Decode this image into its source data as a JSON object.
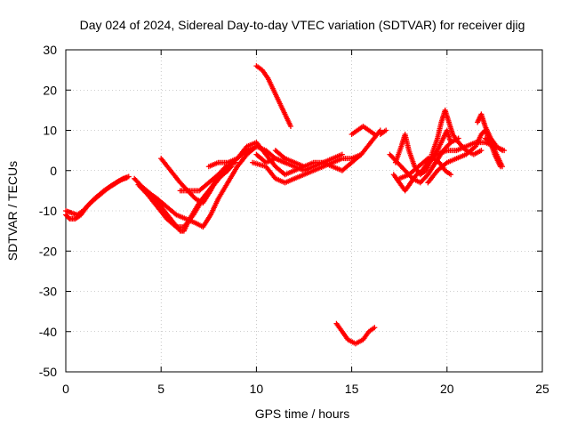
{
  "chart_data": {
    "type": "scatter",
    "title": "Day 024 of 2024, Sidereal Day-to-day VTEC variation (SDTVAR) for receiver djig",
    "xlabel": "GPS time / hours",
    "ylabel": "SDTVAR / TECUs",
    "xlim": [
      0,
      25
    ],
    "ylim": [
      -50,
      30
    ],
    "xticks": [
      0,
      5,
      10,
      15,
      20,
      25
    ],
    "yticks": [
      -50,
      -40,
      -30,
      -20,
      -10,
      0,
      10,
      20,
      30
    ],
    "grid": true,
    "legend": "none",
    "marker": "+",
    "color": "#ff0000",
    "series": [
      {
        "points": [
          [
            0.0,
            -11
          ],
          [
            0.2,
            -12
          ],
          [
            0.5,
            -12
          ],
          [
            0.8,
            -11
          ],
          [
            1.1,
            -9
          ],
          [
            1.5,
            -7
          ],
          [
            2.0,
            -5
          ],
          [
            2.5,
            -3.5
          ],
          [
            3.0,
            -2
          ],
          [
            3.3,
            -1.5
          ]
        ]
      },
      {
        "points": [
          [
            0.0,
            -10
          ],
          [
            0.3,
            -10.5
          ],
          [
            0.6,
            -11
          ],
          [
            0.9,
            -10
          ],
          [
            1.3,
            -8
          ],
          [
            1.8,
            -6
          ],
          [
            2.3,
            -4
          ],
          [
            2.8,
            -2.5
          ],
          [
            3.2,
            -1.8
          ]
        ]
      },
      {
        "points": [
          [
            3.6,
            -2
          ],
          [
            4.0,
            -4
          ],
          [
            4.5,
            -6
          ],
          [
            5.0,
            -9
          ],
          [
            5.5,
            -12
          ],
          [
            6.0,
            -15
          ],
          [
            6.2,
            -15
          ],
          [
            6.5,
            -12
          ],
          [
            7.0,
            -8
          ],
          [
            7.5,
            -5
          ],
          [
            8.0,
            -2
          ],
          [
            8.5,
            0
          ]
        ]
      },
      {
        "points": [
          [
            3.8,
            -3.5
          ],
          [
            4.3,
            -6
          ],
          [
            4.8,
            -9
          ],
          [
            5.3,
            -12
          ],
          [
            5.8,
            -14
          ],
          [
            6.2,
            -14
          ],
          [
            6.7,
            -11
          ],
          [
            7.2,
            -7
          ],
          [
            7.7,
            -4
          ],
          [
            8.2,
            -1
          ],
          [
            8.7,
            1
          ]
        ]
      },
      {
        "points": [
          [
            4.2,
            -5
          ],
          [
            4.8,
            -7
          ],
          [
            5.3,
            -9
          ],
          [
            5.8,
            -11
          ],
          [
            6.3,
            -12
          ],
          [
            6.8,
            -13
          ],
          [
            7.2,
            -14
          ],
          [
            7.6,
            -11
          ],
          [
            8.0,
            -7
          ],
          [
            8.5,
            -3
          ],
          [
            9.0,
            1
          ],
          [
            9.5,
            4
          ],
          [
            10.0,
            6
          ]
        ]
      },
      {
        "points": [
          [
            5.0,
            3
          ],
          [
            5.5,
            0
          ],
          [
            6.0,
            -3
          ],
          [
            6.4,
            -5
          ],
          [
            6.8,
            -7
          ],
          [
            7.2,
            -8
          ],
          [
            7.6,
            -5
          ],
          [
            8.0,
            -1
          ],
          [
            8.4,
            1
          ],
          [
            8.9,
            2
          ]
        ]
      },
      {
        "points": [
          [
            6.0,
            -5
          ],
          [
            6.5,
            -5
          ],
          [
            7.0,
            -5
          ],
          [
            7.5,
            -3
          ],
          [
            8.0,
            -1
          ],
          [
            8.5,
            1
          ],
          [
            9.0,
            3
          ],
          [
            9.5,
            5
          ],
          [
            10.0,
            6
          ],
          [
            10.5,
            5
          ],
          [
            11.0,
            3
          ],
          [
            11.5,
            2
          ]
        ]
      },
      {
        "points": [
          [
            7.5,
            1
          ],
          [
            8.0,
            2
          ],
          [
            8.5,
            2
          ],
          [
            9.0,
            3
          ],
          [
            9.5,
            6
          ],
          [
            10.0,
            7
          ],
          [
            10.5,
            4
          ],
          [
            11.0,
            1
          ],
          [
            11.5,
            -1
          ],
          [
            12.0,
            0
          ],
          [
            12.5,
            1
          ]
        ]
      },
      {
        "points": [
          [
            10.0,
            26
          ],
          [
            10.3,
            25
          ],
          [
            10.6,
            23
          ],
          [
            10.9,
            20
          ],
          [
            11.2,
            17
          ],
          [
            11.5,
            14
          ],
          [
            11.8,
            11
          ]
        ]
      },
      {
        "points": [
          [
            9.8,
            2
          ],
          [
            10.5,
            1
          ],
          [
            11.0,
            -2
          ],
          [
            11.5,
            -3
          ],
          [
            12.0,
            -2
          ],
          [
            12.5,
            -1
          ],
          [
            13.0,
            0
          ],
          [
            13.5,
            1
          ],
          [
            14.0,
            2
          ],
          [
            14.5,
            3
          ],
          [
            15.0,
            3
          ],
          [
            15.5,
            4
          ]
        ]
      },
      {
        "points": [
          [
            10.0,
            4
          ],
          [
            10.5,
            2
          ],
          [
            11.0,
            3
          ],
          [
            11.5,
            2
          ],
          [
            12.0,
            1
          ],
          [
            12.5,
            0
          ],
          [
            13.0,
            1
          ],
          [
            13.5,
            2
          ],
          [
            14.0,
            3
          ],
          [
            14.5,
            4
          ]
        ]
      },
      {
        "points": [
          [
            11.0,
            5
          ],
          [
            11.5,
            3
          ],
          [
            12.0,
            2
          ],
          [
            12.5,
            1
          ],
          [
            13.0,
            2
          ],
          [
            13.5,
            2
          ],
          [
            14.0,
            1
          ],
          [
            14.5,
            0
          ],
          [
            15.0,
            2
          ],
          [
            15.5,
            4
          ],
          [
            16.0,
            7
          ],
          [
            16.5,
            10
          ]
        ]
      },
      {
        "points": [
          [
            14.2,
            -38
          ],
          [
            14.5,
            -40
          ],
          [
            14.8,
            -42
          ],
          [
            15.2,
            -43
          ],
          [
            15.6,
            -42
          ],
          [
            15.9,
            -40
          ],
          [
            16.2,
            -39
          ]
        ]
      },
      {
        "points": [
          [
            15.0,
            9
          ],
          [
            15.3,
            10
          ],
          [
            15.6,
            11
          ],
          [
            15.9,
            10
          ],
          [
            16.2,
            9
          ]
        ]
      },
      {
        "points": [
          [
            16.5,
            9
          ],
          [
            16.8,
            10
          ]
        ]
      },
      {
        "points": [
          [
            17.2,
            -1
          ],
          [
            17.5,
            -3
          ],
          [
            17.8,
            -5
          ],
          [
            18.1,
            -3
          ],
          [
            18.4,
            -1
          ],
          [
            18.7,
            0
          ],
          [
            19.0,
            2
          ],
          [
            19.3,
            3
          ],
          [
            19.6,
            2
          ],
          [
            19.9,
            0
          ],
          [
            20.2,
            -1
          ]
        ]
      },
      {
        "points": [
          [
            17.0,
            4
          ],
          [
            17.4,
            2
          ],
          [
            17.8,
            0
          ],
          [
            18.2,
            -2
          ],
          [
            18.6,
            -3
          ],
          [
            19.0,
            -1
          ],
          [
            19.4,
            2
          ],
          [
            19.8,
            5
          ],
          [
            20.2,
            7
          ],
          [
            20.6,
            8
          ]
        ]
      },
      {
        "points": [
          [
            17.3,
            2
          ],
          [
            17.6,
            6
          ],
          [
            17.8,
            9
          ],
          [
            18.0,
            5
          ],
          [
            18.3,
            1
          ],
          [
            18.6,
            -1
          ],
          [
            18.9,
            0
          ],
          [
            19.2,
            3
          ],
          [
            19.5,
            5
          ],
          [
            19.8,
            8
          ],
          [
            20.0,
            10
          ],
          [
            20.2,
            7
          ]
        ]
      },
      {
        "points": [
          [
            19.2,
            4
          ],
          [
            19.5,
            8
          ],
          [
            19.7,
            12
          ],
          [
            19.9,
            15
          ],
          [
            20.1,
            12
          ],
          [
            20.3,
            9
          ],
          [
            20.6,
            7
          ],
          [
            21.0,
            5
          ],
          [
            21.4,
            4
          ],
          [
            21.8,
            5
          ]
        ]
      },
      {
        "points": [
          [
            17.5,
            -2
          ],
          [
            18.0,
            -1
          ],
          [
            18.5,
            1
          ],
          [
            19.0,
            3
          ],
          [
            19.5,
            4
          ],
          [
            20.0,
            5
          ],
          [
            20.5,
            5
          ],
          [
            21.0,
            6
          ],
          [
            21.5,
            7
          ],
          [
            22.0,
            7
          ],
          [
            22.5,
            6
          ],
          [
            23.0,
            5
          ]
        ]
      },
      {
        "points": [
          [
            19.0,
            -3
          ],
          [
            19.5,
            0
          ],
          [
            20.0,
            2
          ],
          [
            20.5,
            3
          ],
          [
            21.0,
            4
          ],
          [
            21.5,
            6
          ],
          [
            21.8,
            9
          ],
          [
            22.0,
            10
          ],
          [
            22.2,
            8
          ],
          [
            22.5,
            4
          ],
          [
            22.8,
            1
          ]
        ]
      },
      {
        "points": [
          [
            21.6,
            12
          ],
          [
            21.8,
            14
          ],
          [
            22.0,
            11
          ],
          [
            22.3,
            8
          ],
          [
            22.6,
            6
          ],
          [
            22.9,
            5
          ]
        ]
      },
      {
        "points": [
          [
            22.0,
            8
          ],
          [
            22.3,
            7
          ],
          [
            22.6,
            4
          ],
          [
            22.9,
            1
          ]
        ]
      }
    ]
  }
}
